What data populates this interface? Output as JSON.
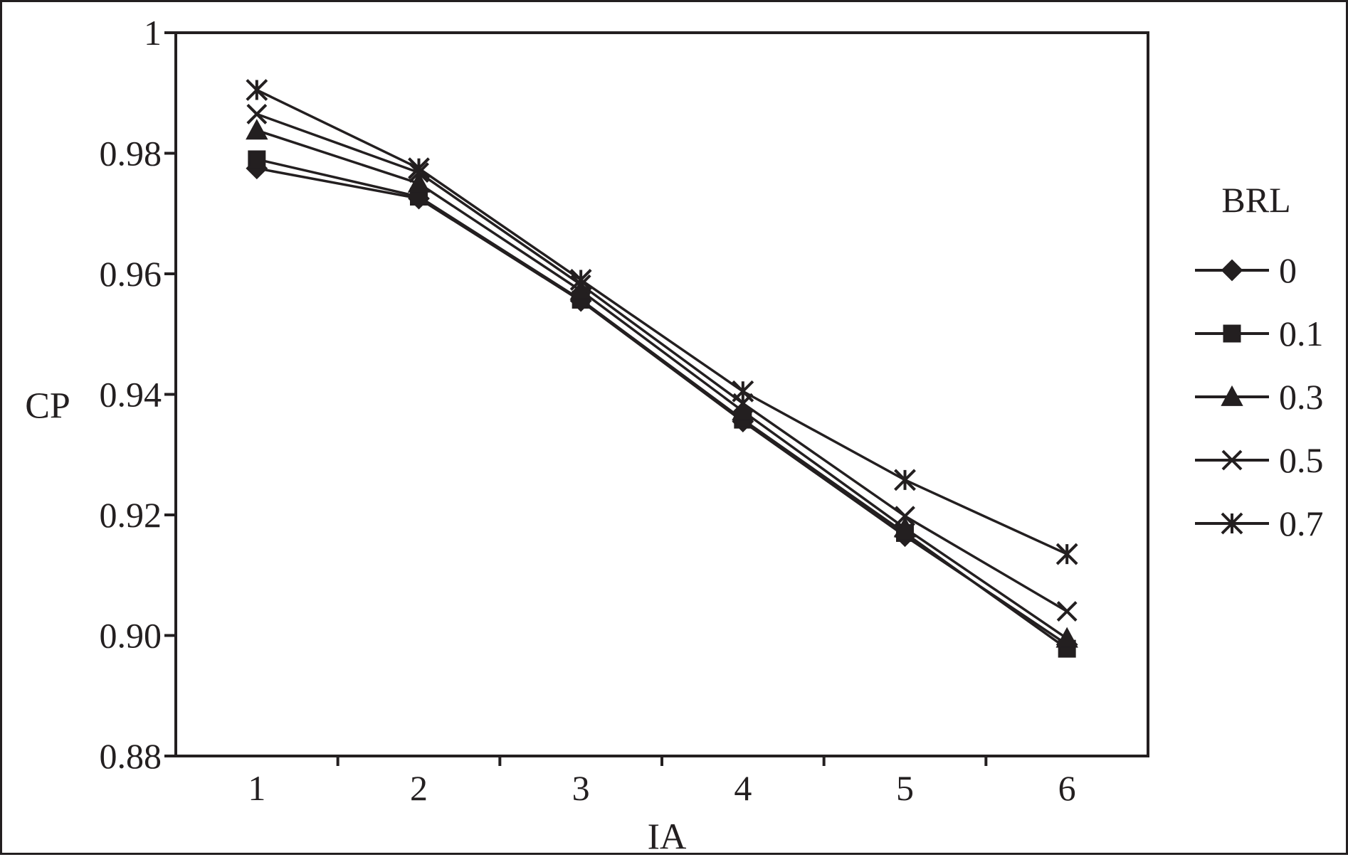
{
  "chart_data": {
    "type": "line",
    "title": "",
    "xlabel": "IA",
    "ylabel": "CP",
    "categories": [
      "1",
      "2",
      "3",
      "4",
      "5",
      "6"
    ],
    "xlim": [
      0.5,
      6.5
    ],
    "ylim": [
      0.88,
      1.0
    ],
    "yticks": [
      "0.88",
      "0.90",
      "0.92",
      "0.94",
      "0.96",
      "0.98",
      "1"
    ],
    "ytick_values": [
      0.88,
      0.9,
      0.92,
      0.94,
      0.96,
      0.98,
      1.0
    ],
    "grid": false,
    "legend": {
      "title": "BRL",
      "placement": "right"
    },
    "series": [
      {
        "name": "0",
        "marker": "diamond",
        "values": [
          0.9775,
          0.9725,
          0.9555,
          0.9355,
          0.9165,
          0.8985
        ]
      },
      {
        "name": "0.1",
        "marker": "square",
        "values": [
          0.979,
          0.9728,
          0.9557,
          0.9358,
          0.917,
          0.8978
        ]
      },
      {
        "name": "0.3",
        "marker": "triangle",
        "values": [
          0.9838,
          0.975,
          0.9572,
          0.9372,
          0.9178,
          0.8995
        ]
      },
      {
        "name": "0.5",
        "marker": "x",
        "values": [
          0.9865,
          0.9768,
          0.9582,
          0.9385,
          0.9198,
          0.904
        ]
      },
      {
        "name": "0.7",
        "marker": "asterisk",
        "values": [
          0.9905,
          0.9775,
          0.959,
          0.9405,
          0.9258,
          0.9135
        ]
      }
    ],
    "colors": {
      "ink": "#231f20",
      "background": "#ffffff"
    }
  }
}
